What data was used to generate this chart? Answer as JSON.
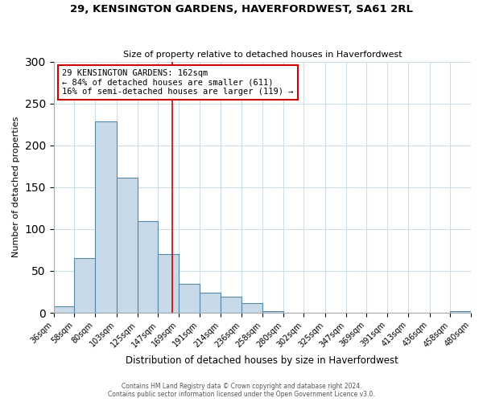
{
  "title": "29, KENSINGTON GARDENS, HAVERFORDWEST, SA61 2RL",
  "subtitle": "Size of property relative to detached houses in Haverfordwest",
  "xlabel": "Distribution of detached houses by size in Haverfordwest",
  "ylabel": "Number of detached properties",
  "bar_labels": [
    "36sqm",
    "58sqm",
    "80sqm",
    "103sqm",
    "125sqm",
    "147sqm",
    "169sqm",
    "191sqm",
    "214sqm",
    "236sqm",
    "258sqm",
    "280sqm",
    "302sqm",
    "325sqm",
    "347sqm",
    "369sqm",
    "391sqm",
    "413sqm",
    "436sqm",
    "458sqm",
    "480sqm"
  ],
  "bar_values": [
    8,
    65,
    229,
    161,
    109,
    70,
    35,
    24,
    19,
    12,
    2,
    0,
    0,
    0,
    0,
    0,
    0,
    0,
    0,
    2
  ],
  "bar_color": "#c8d9e8",
  "bar_edge_color": "#5588aa",
  "ylim": [
    0,
    300
  ],
  "yticks": [
    0,
    50,
    100,
    150,
    200,
    250,
    300
  ],
  "property_line_x": 162,
  "property_line_color": "#cc0000",
  "annotation_title": "29 KENSINGTON GARDENS: 162sqm",
  "annotation_line1": "← 84% of detached houses are smaller (611)",
  "annotation_line2": "16% of semi-detached houses are larger (119) →",
  "annotation_box_color": "#cc0000",
  "footer_line1": "Contains HM Land Registry data © Crown copyright and database right 2024.",
  "footer_line2": "Contains public sector information licensed under the Open Government Licence v3.0.",
  "bin_edges": [
    36,
    58,
    80,
    103,
    125,
    147,
    169,
    191,
    214,
    236,
    258,
    280,
    302,
    325,
    347,
    369,
    391,
    413,
    436,
    458,
    480
  ]
}
